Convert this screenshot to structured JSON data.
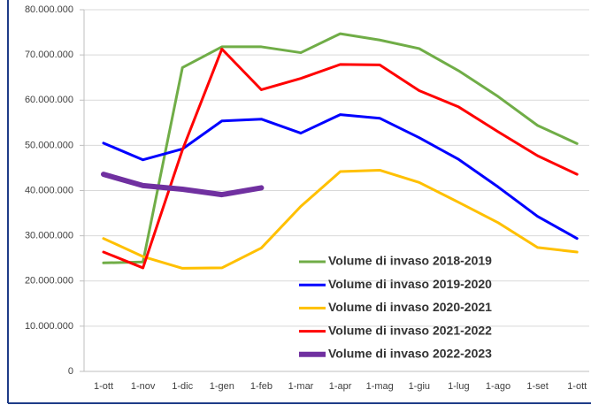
{
  "chart_data": {
    "type": "line",
    "categories": [
      "1-ott",
      "1-nov",
      "1-dic",
      "1-gen",
      "1-feb",
      "1-mar",
      "1-apr",
      "1-mag",
      "1-giu",
      "1-lug",
      "1-ago",
      "1-set",
      "1-ott"
    ],
    "series": [
      {
        "name": "Volume di invaso 2018-2019",
        "color": "#70ad47",
        "width": 3,
        "values": [
          24000000,
          24200000,
          67200000,
          71800000,
          71800000,
          70500000,
          74700000,
          73300000,
          71400000,
          66500000,
          60800000,
          54400000,
          50400000
        ]
      },
      {
        "name": "Volume di invaso 2019-2020",
        "color": "#0000ff",
        "width": 3,
        "values": [
          50500000,
          46800000,
          49200000,
          55400000,
          55800000,
          52700000,
          56800000,
          56000000,
          51700000,
          46900000,
          40800000,
          34300000,
          29400000
        ]
      },
      {
        "name": "Volume di invaso 2020-2021",
        "color": "#ffc000",
        "width": 3,
        "values": [
          29400000,
          25400000,
          22800000,
          22900000,
          27300000,
          36500000,
          44200000,
          44500000,
          41800000,
          37400000,
          32900000,
          27400000,
          26400000
        ]
      },
      {
        "name": "Volume di invaso 2021-2022",
        "color": "#ff0000",
        "width": 3,
        "values": [
          26400000,
          22900000,
          49000000,
          71300000,
          62300000,
          64800000,
          67900000,
          67800000,
          62100000,
          58500000,
          53000000,
          47700000,
          43600000
        ]
      },
      {
        "name": "Volume di invaso 2022-2023",
        "color": "#7030a0",
        "width": 6,
        "values": [
          43600000,
          41100000,
          40300000,
          39100000,
          40600000,
          null,
          null,
          null,
          null,
          null,
          null,
          null,
          null
        ]
      }
    ],
    "ylim": [
      0,
      80000000
    ],
    "yticks": [
      0,
      {
        "value": 10000000,
        "label": "10.000.000"
      },
      {
        "value": 20000000,
        "label": "20.000.000"
      },
      {
        "value": 30000000,
        "label": "30.000.000"
      },
      {
        "value": 40000000,
        "label": "40.000.000"
      },
      {
        "value": 50000000,
        "label": "50.000.000"
      },
      {
        "value": 60000000,
        "label": "60.000.000"
      },
      {
        "value": 70000000,
        "label": "70.000.000"
      },
      {
        "value": 80000000,
        "label": "80.000.000"
      }
    ],
    "grid": true,
    "legend": "lower-right"
  }
}
